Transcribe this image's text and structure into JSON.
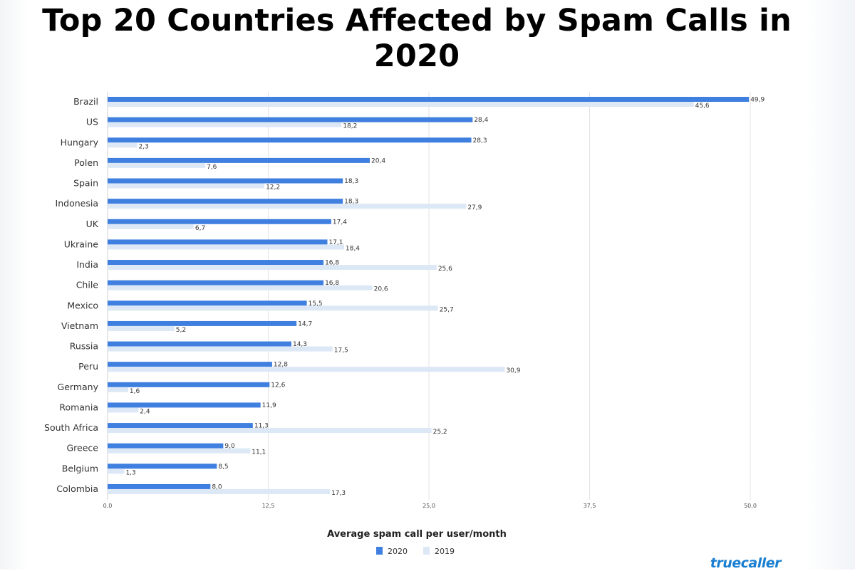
{
  "title": "Top 20 Countries Affected by Spam Calls in 2020",
  "logo": "truecaller",
  "colors": {
    "2020": "#3f7fe0",
    "2019": "#dde8f6"
  },
  "chart_data": {
    "type": "bar",
    "orientation": "horizontal",
    "title": "Top 20 Countries Affected by Spam Calls in 2020",
    "xlabel": "Average spam call per user/month",
    "ylabel": "",
    "xlim": [
      0,
      50
    ],
    "xticks": [
      "0,0",
      "12,5",
      "25,0",
      "37,5",
      "50,0"
    ],
    "grid": true,
    "legend": "bottom",
    "categories": [
      "Brazil",
      "US",
      "Hungary",
      "Polen",
      "Spain",
      "Indonesia",
      "UK",
      "Ukraine",
      "India",
      "Chile",
      "Mexico",
      "Vietnam",
      "Russia",
      "Peru",
      "Germany",
      "Romania",
      "South Africa",
      "Greece",
      "Belgium",
      "Colombia"
    ],
    "series": [
      {
        "name": "2020",
        "values": [
          49.9,
          28.4,
          28.3,
          20.4,
          18.3,
          18.3,
          17.4,
          17.1,
          16.8,
          16.8,
          15.5,
          14.7,
          14.3,
          12.8,
          12.6,
          11.9,
          11.3,
          9.0,
          8.5,
          8.0
        ]
      },
      {
        "name": "2019",
        "values": [
          45.6,
          18.2,
          2.3,
          7.6,
          12.2,
          27.9,
          6.7,
          18.4,
          25.6,
          20.6,
          25.7,
          5.2,
          17.5,
          30.9,
          1.6,
          2.4,
          25.2,
          11.1,
          1.3,
          17.3
        ]
      }
    ]
  }
}
